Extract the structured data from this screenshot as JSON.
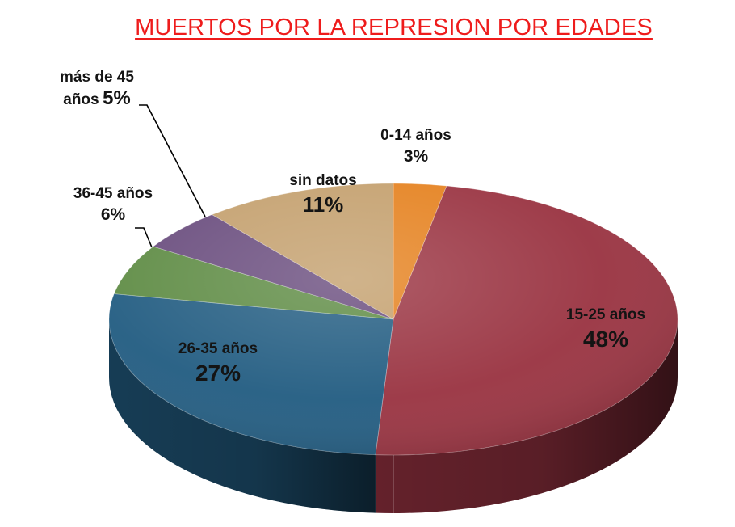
{
  "title": "MUERTOS POR LA REPRESION POR EDADES",
  "colors": {
    "title": "#ee1c1c",
    "slice_0_14": "#e58220",
    "slice_15_25": "#9a3442",
    "slice_26_35": "#235d82",
    "slice_36_45": "#5f8c45",
    "slice_mas_45": "#6a4d7e",
    "slice_sin_datos": "#c4a06e"
  },
  "chart_data": {
    "type": "pie",
    "style": "3d",
    "title": "MUERTOS POR LA REPRESION POR EDADES",
    "slices": [
      {
        "label": "0-14 años",
        "percent_label": "3%",
        "value": 3
      },
      {
        "label": "15-25 años",
        "percent_label": "48%",
        "value": 48
      },
      {
        "label": "26-35 años",
        "percent_label": "27%",
        "value": 27
      },
      {
        "label": "36-45 años",
        "percent_label": "6%",
        "value": 6
      },
      {
        "label": "más de 45 años",
        "label_line1": "más de 45",
        "label_line2": "años",
        "percent_label": "5%",
        "value": 5
      },
      {
        "label": "sin datos",
        "percent_label": "11%",
        "value": 11
      }
    ],
    "legend": "none"
  }
}
